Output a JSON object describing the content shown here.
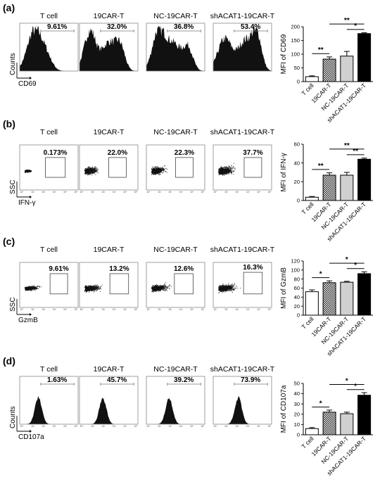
{
  "panels": [
    {
      "label": "(a)",
      "type": "histogram",
      "titles": [
        "T cell",
        "19CAR-T",
        "NC-19CAR-T",
        "shACAT1-19CAR-T"
      ],
      "percentages": [
        "9.61%",
        "32.0%",
        "36.8%",
        "53.4%"
      ],
      "ylabel": "Counts",
      "xlabel": "CD69"
    },
    {
      "label": "(b)",
      "type": "dotplot",
      "titles": [
        "T cell",
        "19CAR-T",
        "NC-19CAR-T",
        "shACAT1-19CAR-T"
      ],
      "percentages": [
        "0.173%",
        "22.0%",
        "22.3%",
        "37.7%"
      ],
      "ylabel": "SSC",
      "xlabel": "IFN-γ"
    },
    {
      "label": "(c)",
      "type": "dotplot",
      "titles": [
        "T cell",
        "19CAR-T",
        "NC-19CAR-T",
        "shACAT1-19CAR-T"
      ],
      "percentages": [
        "9.61%",
        "13.2%",
        "12.6%",
        "16.3%"
      ],
      "ylabel": "SSC",
      "xlabel": "GzmB"
    },
    {
      "label": "(d)",
      "type": "histogram",
      "titles": [
        "T cell",
        "19CAR-T",
        "NC-19CAR-T",
        "shACAT1-19CAR-T"
      ],
      "percentages": [
        "1.63%",
        "45.7%",
        "39.2%",
        "73.9%"
      ],
      "ylabel": "Counts",
      "xlabel": "CD107a"
    }
  ],
  "chart_data": [
    {
      "type": "bar",
      "panel": "(a)",
      "categories": [
        "T cell",
        "19CAR-T",
        "NC-19CAR-T",
        "shACAT1-19CAR-T"
      ],
      "values": [
        18,
        82,
        93,
        175
      ],
      "errors": [
        3,
        8,
        17,
        3
      ],
      "ylabel": "MFI of CD69",
      "ylim": [
        0,
        200
      ],
      "yticks": [
        0,
        50,
        100,
        150,
        200
      ],
      "significance": [
        {
          "from": 0,
          "to": 1,
          "label": "**"
        },
        {
          "from": 1,
          "to": 3,
          "label": "**"
        },
        {
          "from": 2,
          "to": 3,
          "label": "*"
        }
      ]
    },
    {
      "type": "bar",
      "panel": "(b)",
      "categories": [
        "T cell",
        "19CAR-T",
        "NC-19CAR-T",
        "shACAT1-19CAR-T"
      ],
      "values": [
        3.5,
        27,
        27,
        44
      ],
      "errors": [
        0.8,
        2.5,
        3,
        1.2
      ],
      "ylabel": "MFI of IFN-γ",
      "ylim": [
        0,
        60
      ],
      "yticks": [
        0,
        20,
        40,
        60
      ],
      "significance": [
        {
          "from": 0,
          "to": 1,
          "label": "**"
        },
        {
          "from": 1,
          "to": 3,
          "label": "**"
        },
        {
          "from": 2,
          "to": 3,
          "label": "**"
        }
      ]
    },
    {
      "type": "bar",
      "panel": "(c)",
      "categories": [
        "T cell",
        "19CAR-T",
        "NC-19CAR-T",
        "shACAT1-19CAR-T"
      ],
      "values": [
        52,
        72,
        73,
        92
      ],
      "errors": [
        4,
        4,
        2,
        4
      ],
      "ylabel": "MFI of GzmB",
      "ylim": [
        0,
        120
      ],
      "yticks": [
        0,
        20,
        40,
        60,
        80,
        100,
        120
      ],
      "significance": [
        {
          "from": 0,
          "to": 1,
          "label": "*"
        },
        {
          "from": 1,
          "to": 3,
          "label": "*"
        },
        {
          "from": 2,
          "to": 3,
          "label": "*"
        }
      ]
    },
    {
      "type": "bar",
      "panel": "(d)",
      "categories": [
        "T cell",
        "19CAR-T",
        "NC-19CAR-T",
        "shACAT1-19CAR-T"
      ],
      "values": [
        6,
        22,
        20.5,
        38.5
      ],
      "errors": [
        1,
        2,
        1.5,
        2.5
      ],
      "ylabel": "MFI of CD107a",
      "ylim": [
        0,
        50
      ],
      "yticks": [
        0,
        10,
        20,
        30,
        40,
        50
      ],
      "significance": [
        {
          "from": 0,
          "to": 1,
          "label": "*"
        },
        {
          "from": 1,
          "to": 3,
          "label": "*"
        },
        {
          "from": 2,
          "to": 3,
          "label": "*"
        }
      ]
    }
  ],
  "flow_tick_labels": [
    "10⁰",
    "10¹",
    "10²",
    "10³",
    "10⁴",
    "10⁵"
  ]
}
